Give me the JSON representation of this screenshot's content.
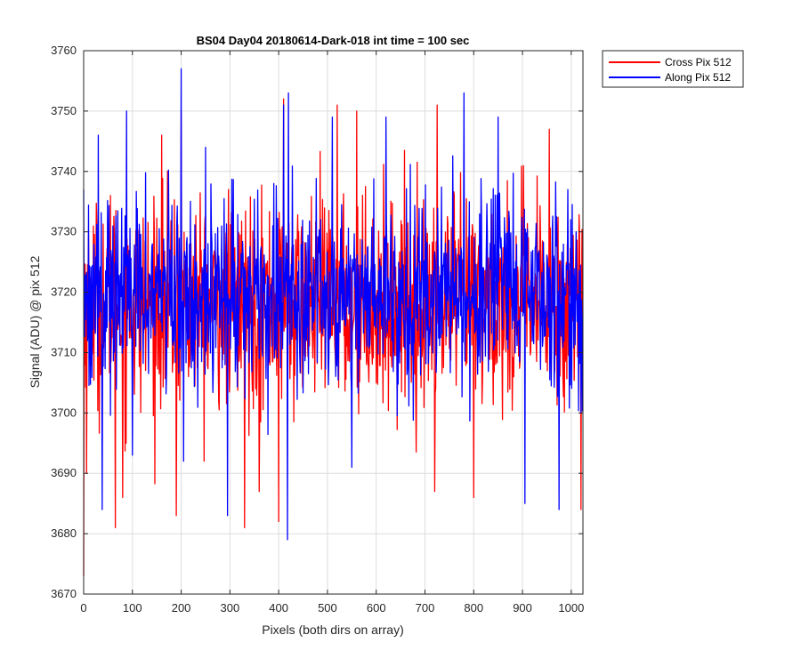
{
  "chart_data": {
    "type": "line",
    "title": "BS04 Day04 20180614-Dark-018 int time = 100 sec",
    "xlabel": "Pixels (both dirs on array)",
    "ylabel": "Signal (ADU) @ pix 512",
    "xlim": [
      0,
      1024
    ],
    "ylim": [
      3670,
      3760
    ],
    "xticks": [
      0,
      100,
      200,
      300,
      400,
      500,
      600,
      700,
      800,
      900,
      1000
    ],
    "yticks": [
      3670,
      3680,
      3690,
      3700,
      3710,
      3720,
      3730,
      3740,
      3750,
      3760
    ],
    "grid": true,
    "legend_position": "outside-top-right",
    "noise_model": {
      "points_per_series": 1024,
      "mean": 3719,
      "note_only_for_script": false
    },
    "series": [
      {
        "name": "Cross Pix 512",
        "color": "#ff0000",
        "mean": 3718,
        "std": 10,
        "key_points": [
          [
            0,
            3673
          ],
          [
            2,
            3708
          ],
          [
            6,
            3690
          ],
          [
            55,
            3736
          ],
          [
            65,
            3681
          ],
          [
            80,
            3686
          ],
          [
            160,
            3746
          ],
          [
            190,
            3683
          ],
          [
            200,
            3750
          ],
          [
            330,
            3681
          ],
          [
            360,
            3687
          ],
          [
            400,
            3682
          ],
          [
            410,
            3752
          ],
          [
            520,
            3751
          ],
          [
            560,
            3750
          ],
          [
            720,
            3687
          ],
          [
            725,
            3751
          ],
          [
            800,
            3686
          ],
          [
            955,
            3747
          ],
          [
            1020,
            3684
          ]
        ]
      },
      {
        "name": "Along Pix 512",
        "color": "#0000ff",
        "mean": 3720,
        "std": 9,
        "key_points": [
          [
            0,
            3737
          ],
          [
            30,
            3746
          ],
          [
            38,
            3684
          ],
          [
            88,
            3750
          ],
          [
            100,
            3693
          ],
          [
            200,
            3757
          ],
          [
            205,
            3692
          ],
          [
            250,
            3744
          ],
          [
            295,
            3683
          ],
          [
            390,
            3738
          ],
          [
            410,
            3751
          ],
          [
            418,
            3679
          ],
          [
            420,
            3753
          ],
          [
            510,
            3749
          ],
          [
            550,
            3691
          ],
          [
            620,
            3749
          ],
          [
            780,
            3753
          ],
          [
            850,
            3749
          ],
          [
            905,
            3685
          ],
          [
            975,
            3684
          ],
          [
            1010,
            3730
          ],
          [
            1020,
            3700
          ]
        ]
      }
    ]
  }
}
